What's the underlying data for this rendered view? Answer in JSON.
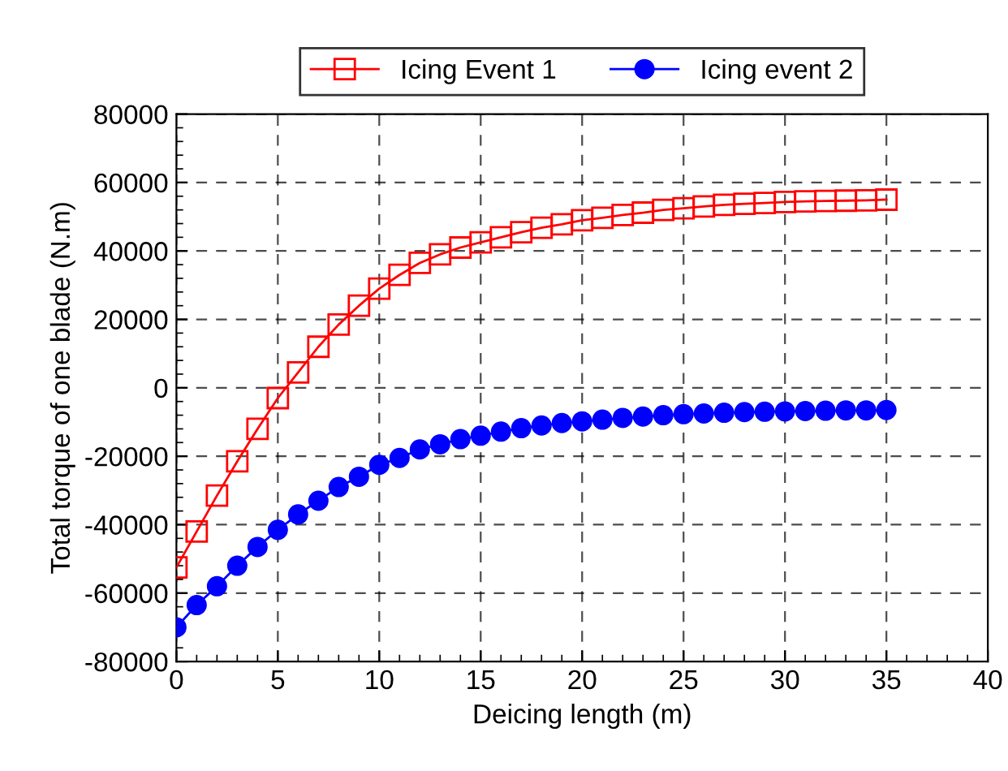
{
  "chart_data": {
    "type": "line",
    "xlabel": "Deicing length (m)",
    "ylabel": "Total torque of one blade (N.m)",
    "x": [
      0,
      1,
      2,
      3,
      4,
      5,
      6,
      7,
      8,
      9,
      10,
      11,
      12,
      13,
      14,
      15,
      16,
      17,
      18,
      19,
      20,
      21,
      22,
      23,
      24,
      25,
      26,
      27,
      28,
      29,
      30,
      31,
      32,
      33,
      34,
      35
    ],
    "series": [
      {
        "name": "Icing Event 1",
        "color": "#ff0000",
        "marker": "square",
        "values": [
          -52500,
          -42000,
          -31500,
          -21500,
          -12000,
          -3000,
          4500,
          12000,
          18500,
          24000,
          29000,
          33000,
          36500,
          39000,
          41000,
          42500,
          44000,
          45500,
          46800,
          47800,
          49000,
          49700,
          50500,
          51200,
          52000,
          52500,
          53000,
          53500,
          53800,
          54000,
          54300,
          54500,
          54600,
          54700,
          54800,
          55000
        ]
      },
      {
        "name": "Icing event 2",
        "color": "#0000ff",
        "marker": "circle",
        "values": [
          -70000,
          -63500,
          -58000,
          -52000,
          -46500,
          -41500,
          -37000,
          -33000,
          -29000,
          -26000,
          -22500,
          -20500,
          -18000,
          -16500,
          -15000,
          -14000,
          -12800,
          -11800,
          -11000,
          -10300,
          -9800,
          -9300,
          -8800,
          -8400,
          -8000,
          -7700,
          -7500,
          -7300,
          -7100,
          -7000,
          -6900,
          -6800,
          -6700,
          -6600,
          -6600,
          -6500
        ]
      }
    ],
    "xlim": [
      0,
      40
    ],
    "xticks": [
      0,
      5,
      10,
      15,
      20,
      25,
      30,
      35,
      40
    ],
    "ylim": [
      -80000,
      80000
    ],
    "yticks": [
      -80000,
      -60000,
      -40000,
      -20000,
      0,
      20000,
      40000,
      60000,
      80000
    ],
    "grid": true,
    "line_style": "solid",
    "legend": "top"
  }
}
